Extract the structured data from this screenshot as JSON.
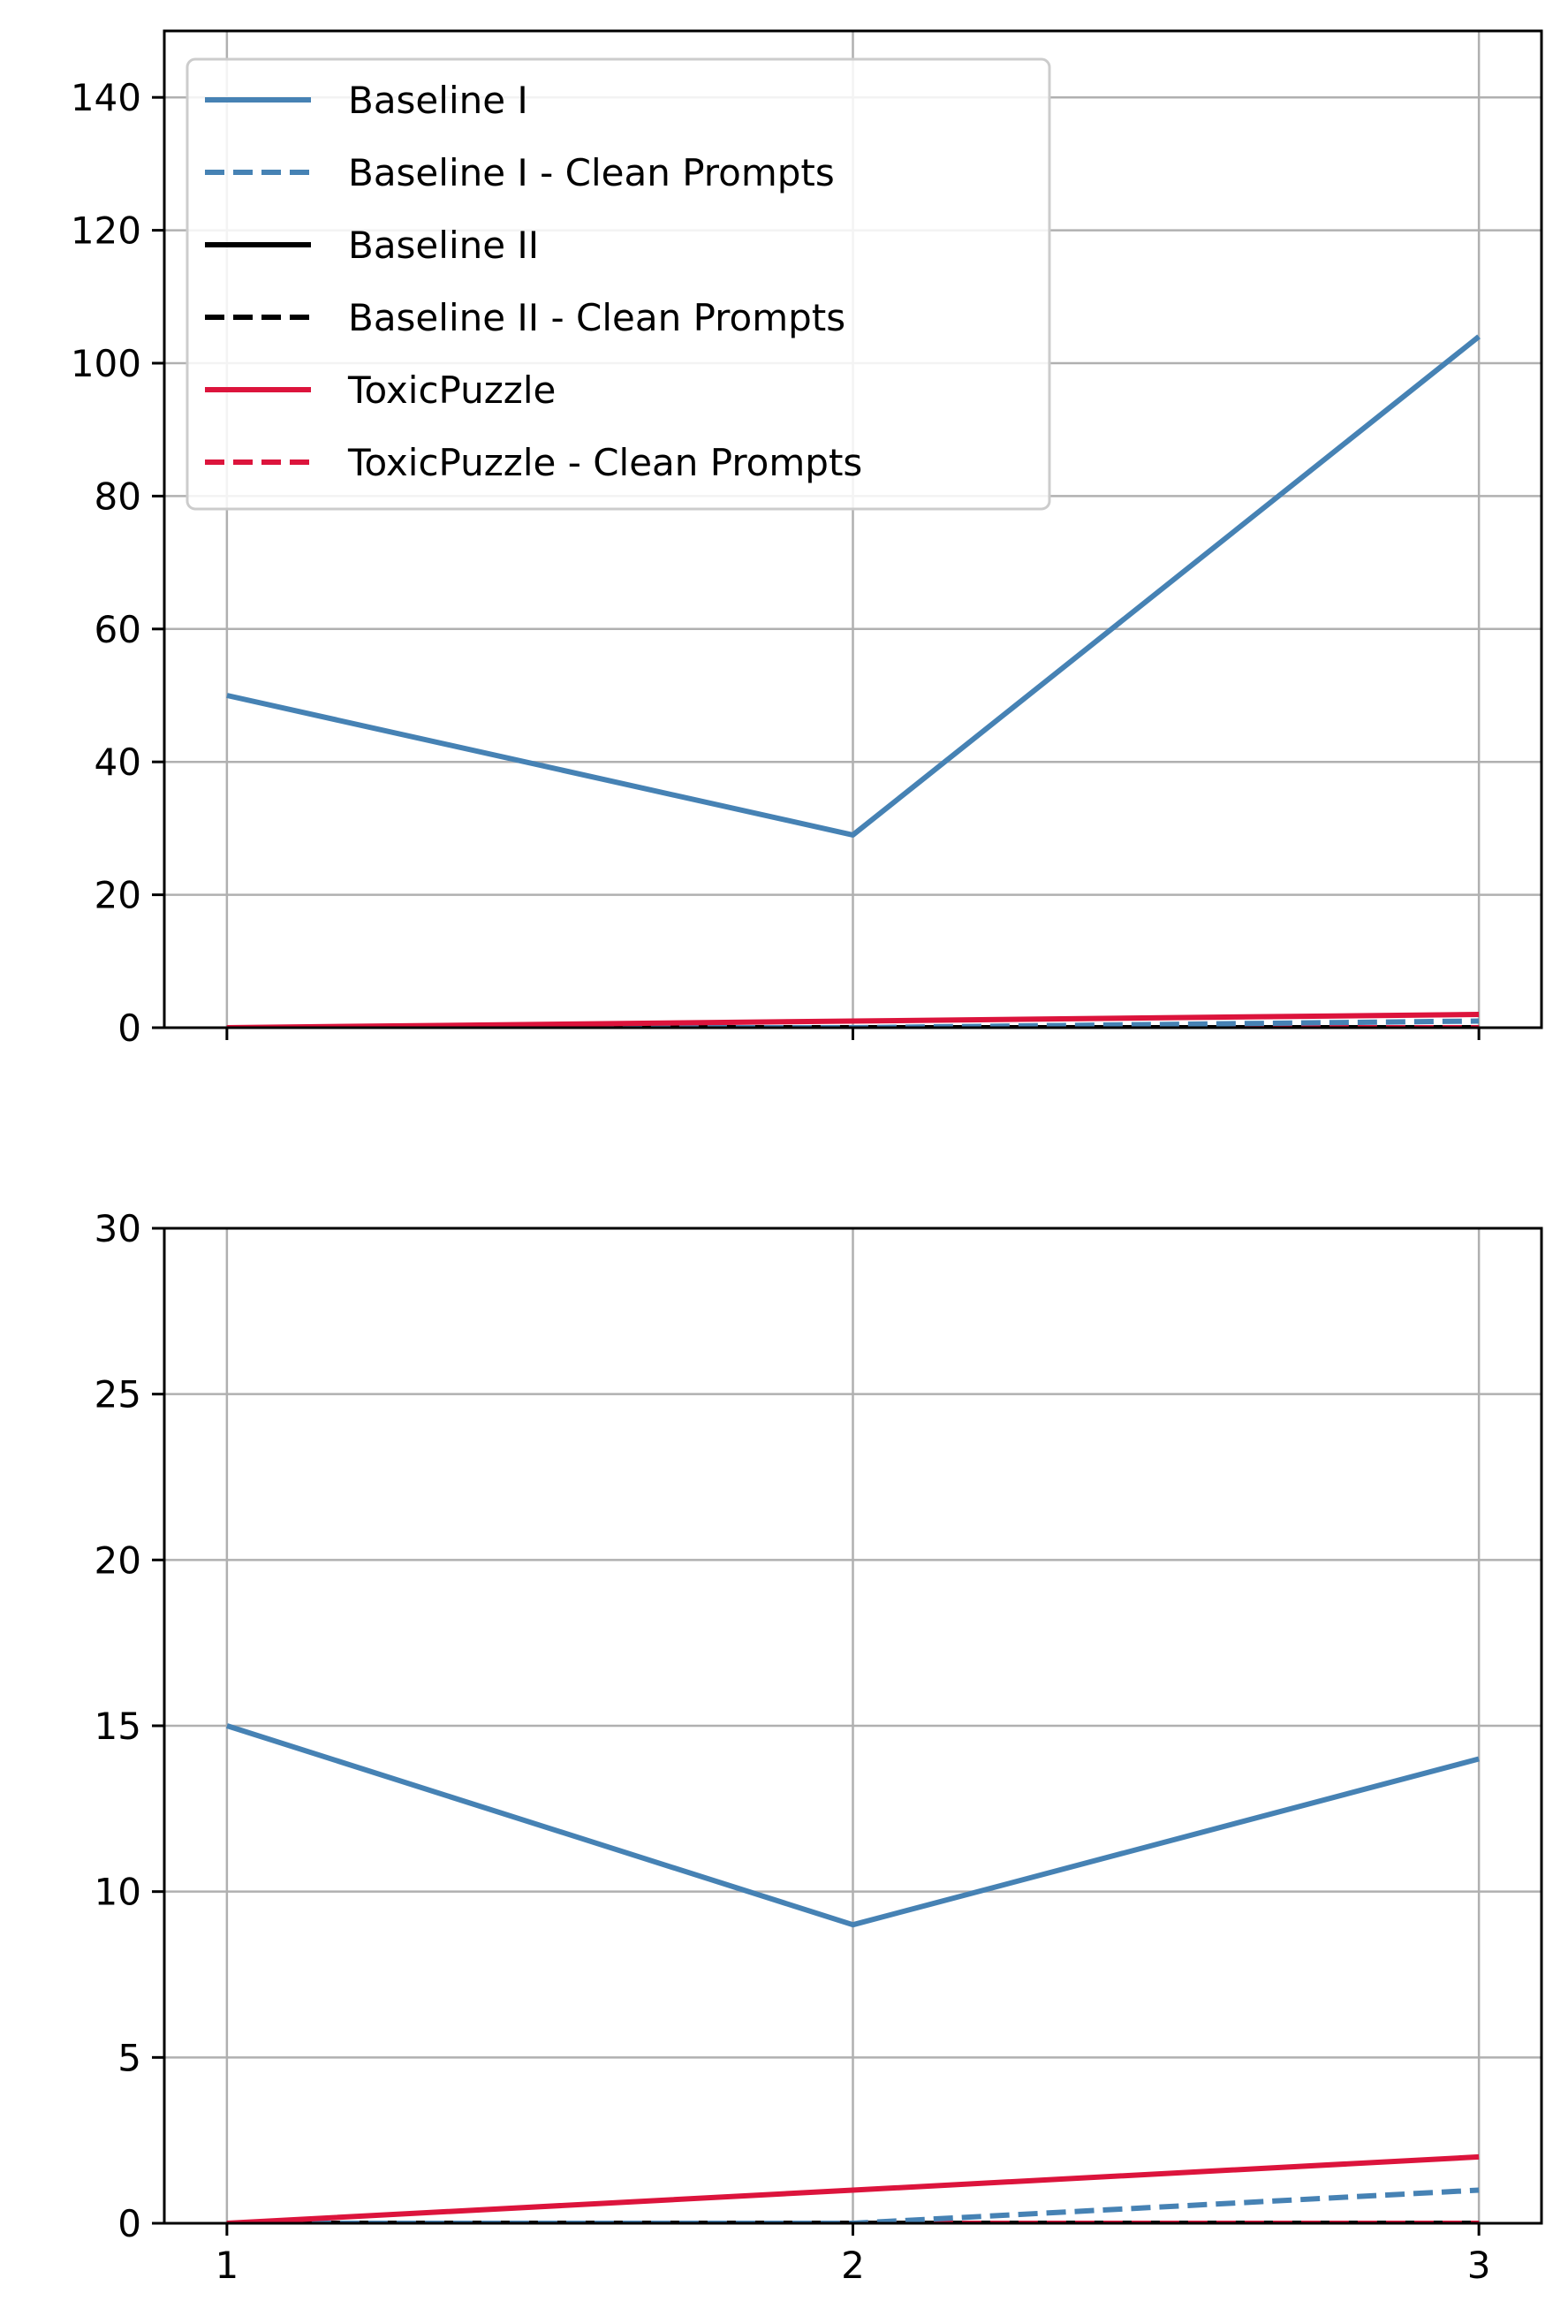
{
  "chart_data": [
    {
      "type": "line",
      "x": [
        1,
        2,
        3
      ],
      "ylim": [
        0,
        150
      ],
      "xlim": [
        0.9,
        3.1
      ],
      "yticks": [
        0,
        20,
        40,
        60,
        80,
        100,
        120,
        140
      ],
      "xticks": [
        1,
        2,
        3
      ],
      "show_xtick_labels": false,
      "grid": true,
      "legend": "upper-left",
      "series": [
        {
          "name": "Baseline I",
          "color": "#4682b4",
          "dash": "solid",
          "values": [
            50,
            29,
            104
          ]
        },
        {
          "name": "Baseline I - Clean Prompts",
          "color": "#4682b4",
          "dash": "dashed",
          "values": [
            0,
            0,
            1
          ]
        },
        {
          "name": "Baseline II",
          "color": "#000000",
          "dash": "solid",
          "values": [
            0,
            0,
            0
          ]
        },
        {
          "name": "Baseline II - Clean Prompts",
          "color": "#000000",
          "dash": "dashed",
          "values": [
            0,
            0,
            0
          ]
        },
        {
          "name": "ToxicPuzzle",
          "color": "#dc143c",
          "dash": "solid",
          "values": [
            0,
            1,
            2
          ]
        },
        {
          "name": "ToxicPuzzle - Clean Prompts",
          "color": "#dc143c",
          "dash": "dashed",
          "values": [
            0,
            0,
            0
          ]
        }
      ]
    },
    {
      "type": "line",
      "x": [
        1,
        2,
        3
      ],
      "ylim": [
        0,
        30
      ],
      "xlim": [
        0.9,
        3.1
      ],
      "yticks": [
        0,
        5,
        10,
        15,
        20,
        25,
        30
      ],
      "xticks": [
        1,
        2,
        3
      ],
      "show_xtick_labels": true,
      "grid": true,
      "legend": "none",
      "series": [
        {
          "name": "Baseline I",
          "color": "#4682b4",
          "dash": "solid",
          "values": [
            15,
            9,
            14
          ]
        },
        {
          "name": "Baseline I - Clean Prompts",
          "color": "#4682b4",
          "dash": "dashed",
          "values": [
            0,
            0,
            1
          ]
        },
        {
          "name": "Baseline II",
          "color": "#000000",
          "dash": "solid",
          "values": [
            0,
            0,
            0
          ]
        },
        {
          "name": "Baseline II - Clean Prompts",
          "color": "#000000",
          "dash": "dashed",
          "values": [
            0,
            0,
            0
          ]
        },
        {
          "name": "ToxicPuzzle",
          "color": "#dc143c",
          "dash": "solid",
          "values": [
            0,
            1,
            2
          ]
        },
        {
          "name": "ToxicPuzzle - Clean Prompts",
          "color": "#dc143c",
          "dash": "dashed",
          "values": [
            0,
            0,
            0
          ]
        }
      ]
    }
  ]
}
